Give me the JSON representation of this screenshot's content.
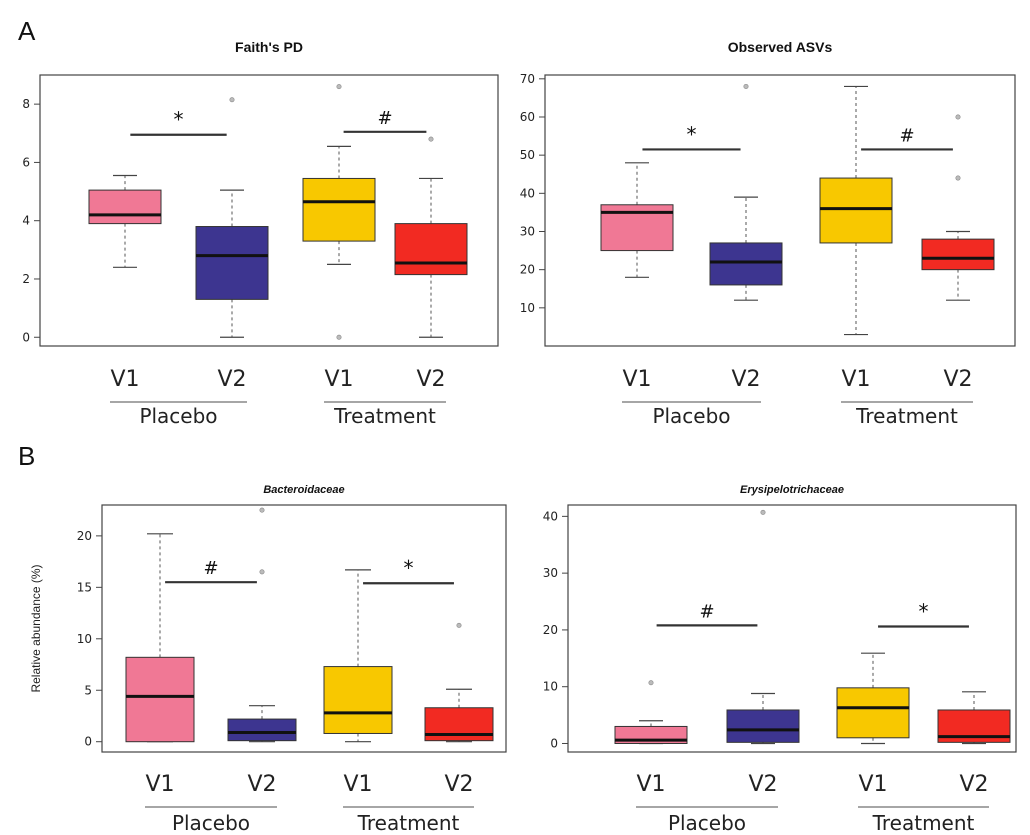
{
  "panel_labels": [
    "A",
    "B"
  ],
  "colors": {
    "placebo_v1": "#f07895",
    "placebo_v2": "#3d3590",
    "treatment_v1": "#f8c800",
    "treatment_v2": "#f22a22"
  },
  "chart_data": [
    {
      "type": "boxplot",
      "title": "Faith's PD",
      "title_style": "bold",
      "ylabel": "",
      "ylim": [
        -0.3,
        9.0
      ],
      "yticks": [
        0,
        2,
        4,
        6,
        8
      ],
      "categories": [
        "V1",
        "V2",
        "V1",
        "V2"
      ],
      "groups": [
        {
          "label": "Placebo",
          "categories": [
            0,
            1
          ]
        },
        {
          "label": "Treatment",
          "categories": [
            2,
            3
          ]
        }
      ],
      "boxes": [
        {
          "whisker_low": 2.4,
          "q1": 3.9,
          "median": 4.2,
          "q3": 5.05,
          "whisker_high": 5.55,
          "outliers": []
        },
        {
          "whisker_low": 0.0,
          "q1": 1.3,
          "median": 2.8,
          "q3": 3.8,
          "whisker_high": 5.05,
          "outliers": [
            8.15
          ]
        },
        {
          "whisker_low": 2.5,
          "q1": 3.3,
          "median": 4.65,
          "q3": 5.45,
          "whisker_high": 6.55,
          "outliers": [
            0.0,
            8.6
          ]
        },
        {
          "whisker_low": 0.0,
          "q1": 2.15,
          "median": 2.55,
          "q3": 3.9,
          "whisker_high": 5.45,
          "outliers": [
            6.8
          ]
        }
      ],
      "annotations": [
        {
          "from": 0,
          "to": 1,
          "y": 6.95,
          "text": "*"
        },
        {
          "from": 2,
          "to": 3,
          "y": 7.05,
          "text": "#"
        }
      ]
    },
    {
      "type": "boxplot",
      "title": "Observed ASVs",
      "title_style": "bold",
      "ylabel": "",
      "ylim": [
        0,
        71
      ],
      "yticks": [
        10,
        20,
        30,
        40,
        50,
        60,
        70
      ],
      "categories": [
        "V1",
        "V2",
        "V1",
        "V2"
      ],
      "groups": [
        {
          "label": "Placebo",
          "categories": [
            0,
            1
          ]
        },
        {
          "label": "Treatment",
          "categories": [
            2,
            3
          ]
        }
      ],
      "boxes": [
        {
          "whisker_low": 18,
          "q1": 25,
          "median": 35,
          "q3": 37,
          "whisker_high": 48,
          "outliers": []
        },
        {
          "whisker_low": 12,
          "q1": 16,
          "median": 22,
          "q3": 27,
          "whisker_high": 39,
          "outliers": [
            68
          ]
        },
        {
          "whisker_low": 3,
          "q1": 27,
          "median": 36,
          "q3": 44,
          "whisker_high": 68,
          "outliers": []
        },
        {
          "whisker_low": 12,
          "q1": 20,
          "median": 23,
          "q3": 28,
          "whisker_high": 30,
          "outliers": [
            44,
            60
          ]
        }
      ],
      "annotations": [
        {
          "from": 0,
          "to": 1,
          "y": 51.5,
          "text": "*"
        },
        {
          "from": 2,
          "to": 3,
          "y": 51.5,
          "text": "#"
        }
      ]
    },
    {
      "type": "boxplot",
      "title": "Bacteroidaceae",
      "title_style": "bold-italic",
      "ylabel": "Relative abundance (%)",
      "ylim": [
        -1.0,
        23.0
      ],
      "yticks": [
        0,
        5,
        10,
        15,
        20
      ],
      "categories": [
        "V1",
        "V2",
        "V1",
        "V2"
      ],
      "groups": [
        {
          "label": "Placebo",
          "categories": [
            0,
            1
          ]
        },
        {
          "label": "Treatment",
          "categories": [
            2,
            3
          ]
        }
      ],
      "boxes": [
        {
          "whisker_low": 0.0,
          "q1": 0.0,
          "median": 4.4,
          "q3": 8.2,
          "whisker_high": 20.2,
          "outliers": []
        },
        {
          "whisker_low": 0.0,
          "q1": 0.1,
          "median": 0.9,
          "q3": 2.2,
          "whisker_high": 3.5,
          "outliers": [
            16.5,
            22.5
          ]
        },
        {
          "whisker_low": 0.0,
          "q1": 0.8,
          "median": 2.8,
          "q3": 7.3,
          "whisker_high": 16.7,
          "outliers": []
        },
        {
          "whisker_low": 0.0,
          "q1": 0.1,
          "median": 0.7,
          "q3": 3.3,
          "whisker_high": 5.1,
          "outliers": [
            11.3
          ]
        }
      ],
      "annotations": [
        {
          "from": 0,
          "to": 1,
          "y": 15.5,
          "text": "#"
        },
        {
          "from": 2,
          "to": 3,
          "y": 15.4,
          "text": "*"
        }
      ]
    },
    {
      "type": "boxplot",
      "title": "Erysipelotrichaceae",
      "title_style": "bold-italic",
      "ylabel": "",
      "ylim": [
        -1.5,
        42.0
      ],
      "yticks": [
        0,
        10,
        20,
        30,
        40
      ],
      "categories": [
        "V1",
        "V2",
        "V1",
        "V2"
      ],
      "groups": [
        {
          "label": "Placebo",
          "categories": [
            0,
            1
          ]
        },
        {
          "label": "Treatment",
          "categories": [
            2,
            3
          ]
        }
      ],
      "boxes": [
        {
          "whisker_low": 0.0,
          "q1": 0.0,
          "median": 0.6,
          "q3": 3.0,
          "whisker_high": 4.0,
          "outliers": [
            10.7
          ]
        },
        {
          "whisker_low": 0.0,
          "q1": 0.2,
          "median": 2.4,
          "q3": 5.9,
          "whisker_high": 8.8,
          "outliers": [
            40.7
          ]
        },
        {
          "whisker_low": 0.0,
          "q1": 1.0,
          "median": 6.3,
          "q3": 9.8,
          "whisker_high": 15.9,
          "outliers": []
        },
        {
          "whisker_low": 0.0,
          "q1": 0.2,
          "median": 1.2,
          "q3": 5.9,
          "whisker_high": 9.1,
          "outliers": []
        }
      ],
      "annotations": [
        {
          "from": 0,
          "to": 1,
          "y": 20.8,
          "text": "#"
        },
        {
          "from": 2,
          "to": 3,
          "y": 20.6,
          "text": "*"
        }
      ]
    }
  ]
}
